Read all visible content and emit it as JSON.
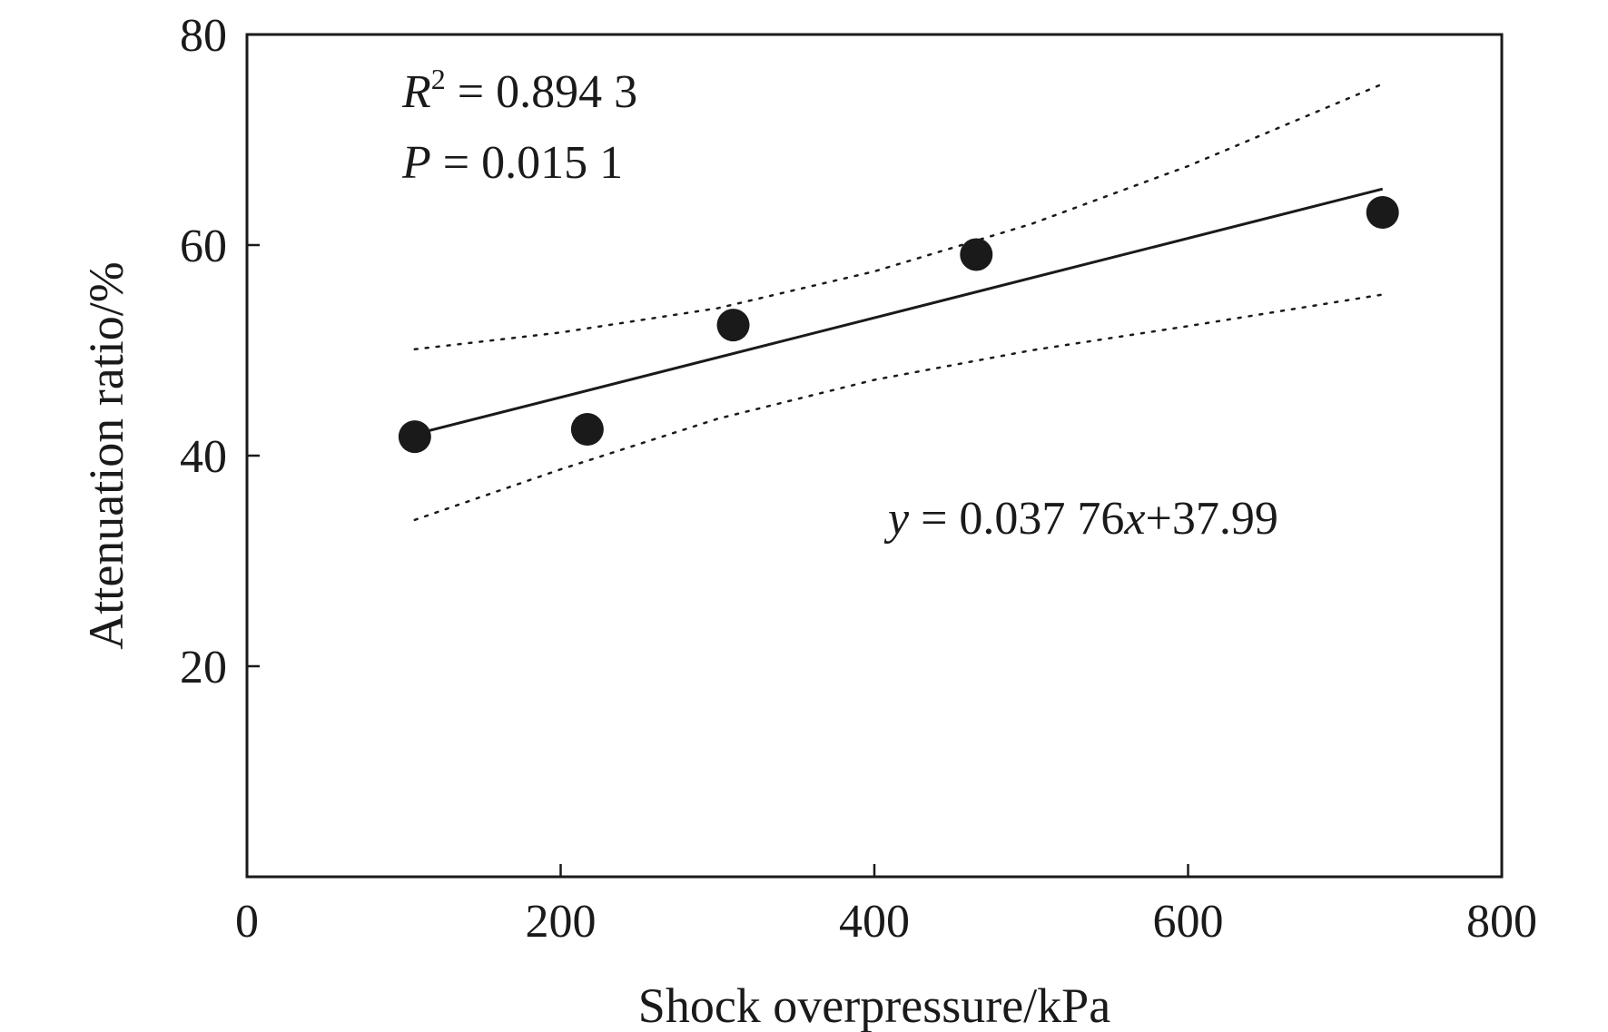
{
  "chart_data": {
    "type": "scatter",
    "xlabel": "Shock overpressure/kPa",
    "ylabel": "Attenuation ratio/%",
    "xlim": [
      0,
      800
    ],
    "ylim": [
      0,
      80
    ],
    "x_ticks": [
      0,
      200,
      400,
      600,
      800
    ],
    "y_ticks": [
      20,
      40,
      60,
      80
    ],
    "x_tick_labels": [
      "0",
      "200",
      "400",
      "600",
      "800"
    ],
    "y_tick_labels": [
      "20",
      "40",
      "60",
      "80"
    ],
    "grid": false,
    "points": [
      {
        "x": 107,
        "y": 41.8
      },
      {
        "x": 217,
        "y": 42.5
      },
      {
        "x": 310,
        "y": 52.4
      },
      {
        "x": 465,
        "y": 59.1
      },
      {
        "x": 724,
        "y": 63.1
      }
    ],
    "fit": {
      "slope": 0.03776,
      "intercept": 37.99,
      "x_range": [
        107,
        724
      ]
    },
    "confidence_upper": [
      {
        "x": 107,
        "y": 50.1
      },
      {
        "x": 200,
        "y": 51.7
      },
      {
        "x": 300,
        "y": 54.0
      },
      {
        "x": 400,
        "y": 57.5
      },
      {
        "x": 500,
        "y": 62.0
      },
      {
        "x": 600,
        "y": 67.5
      },
      {
        "x": 724,
        "y": 75.3
      }
    ],
    "confidence_lower": [
      {
        "x": 107,
        "y": 33.9
      },
      {
        "x": 200,
        "y": 38.7
      },
      {
        "x": 300,
        "y": 43.5
      },
      {
        "x": 400,
        "y": 47.2
      },
      {
        "x": 500,
        "y": 50.0
      },
      {
        "x": 600,
        "y": 52.3
      },
      {
        "x": 724,
        "y": 55.3
      }
    ],
    "annotations": {
      "r2_label": "R",
      "r2_sup": "2",
      "r2_value": " = 0.894 3",
      "p_label": "P",
      "p_value": " = 0.015 1",
      "eq_y": "y",
      "eq_mid": " = 0.037 76",
      "eq_x": "x",
      "eq_end": "+37.99"
    }
  }
}
